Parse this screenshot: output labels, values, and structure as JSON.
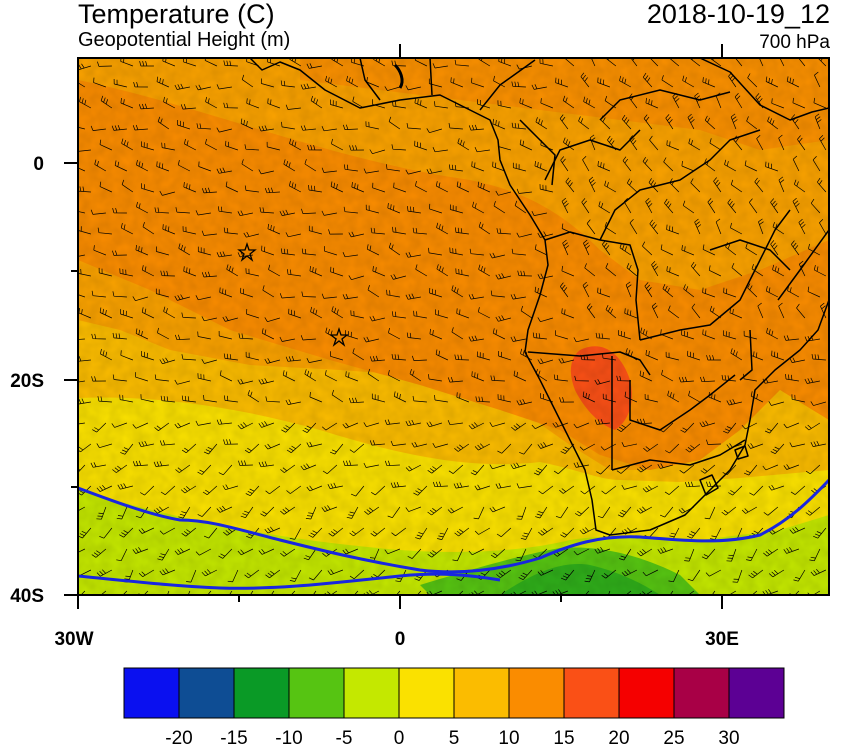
{
  "header": {
    "title": "Temperature (C)",
    "subtitle": "Geopotential Height (m)",
    "datetime": "2018-10-19_12",
    "level": "700 hPa"
  },
  "map": {
    "lon_range": [
      -30,
      40
    ],
    "lat_range": [
      -40,
      10
    ],
    "lat_labels": [
      "0",
      "20S",
      "40S"
    ],
    "lon_labels": [
      "30W",
      "0",
      "30E"
    ],
    "markers": [
      "star",
      "star"
    ]
  },
  "colorbar": {
    "colors": [
      "#0a10f0",
      "#0e4d94",
      "#0a9a26",
      "#56c412",
      "#c4e800",
      "#fae100",
      "#fbbc00",
      "#fa8c00",
      "#fa5016",
      "#f50000",
      "#a80046",
      "#5c0094"
    ],
    "labels": [
      "-20",
      "-15",
      "-10",
      "-5",
      "0",
      "5",
      "10",
      "15",
      "20",
      "25",
      "30"
    ]
  },
  "palette": {
    "height_contour": "#1826e0",
    "border": "#000000"
  }
}
